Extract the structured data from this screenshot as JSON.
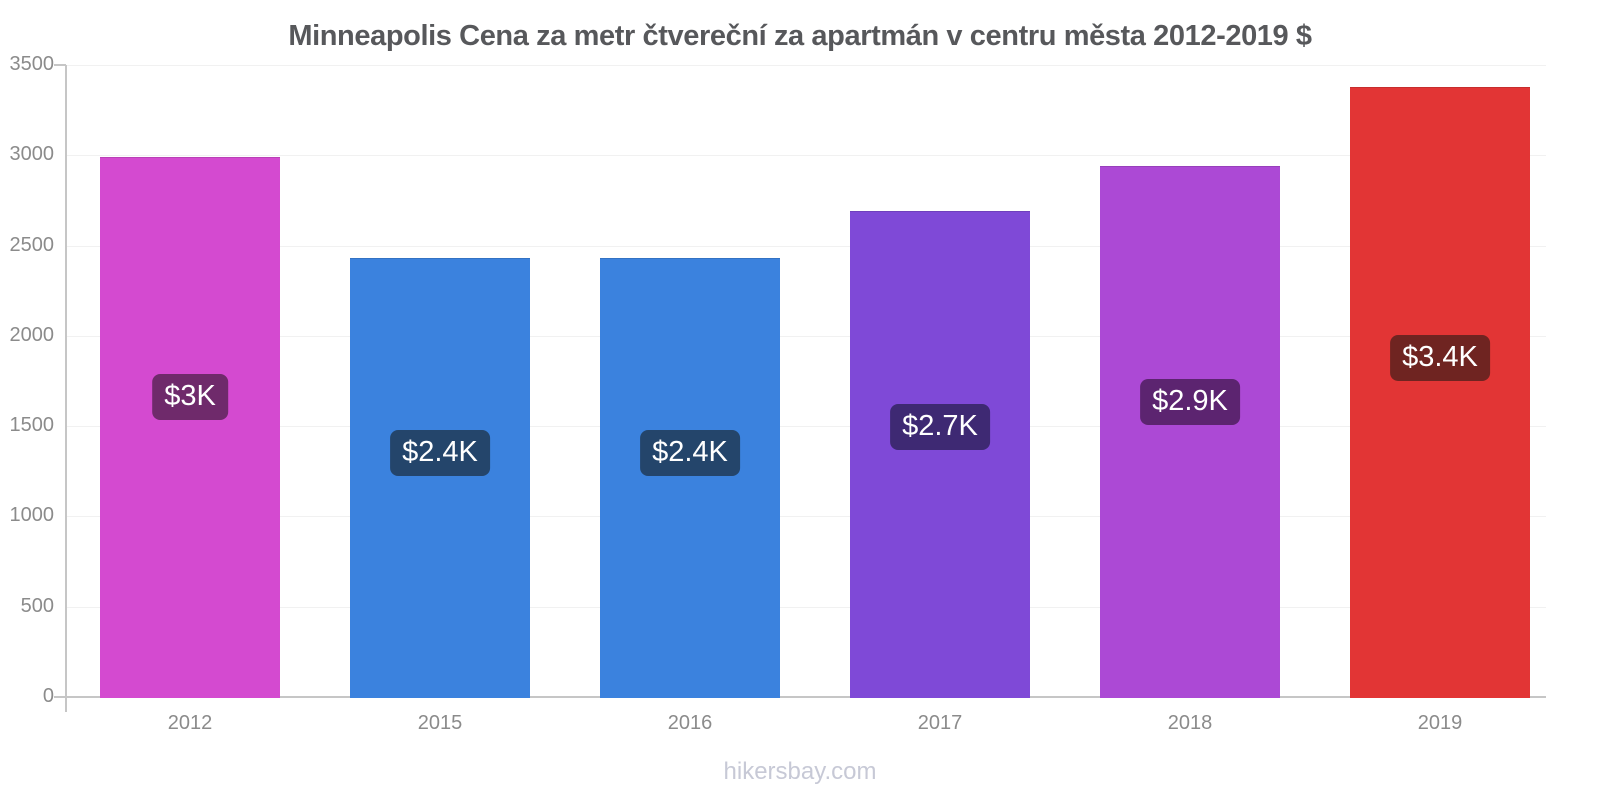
{
  "title": "Minneapolis Cena za metr čtvereční za apartmán v centru města 2012-2019 $",
  "footer": "hikersbay.com",
  "chart_data": {
    "type": "bar",
    "title": "Minneapolis Cena za metr čtvereční za apartmán v centru města 2012-2019 $",
    "categories": [
      "2012",
      "2015",
      "2016",
      "2017",
      "2018",
      "2019"
    ],
    "values": [
      2990,
      2430,
      2430,
      2690,
      2940,
      3380
    ],
    "bar_labels": [
      "$3K",
      "$2.4K",
      "$2.4K",
      "$2.7K",
      "$2.9K",
      "$3.4K"
    ],
    "bar_colors": [
      "#d44ad0",
      "#3b82de",
      "#3b82de",
      "#7f49d7",
      "#ac49d5",
      "#e23535"
    ],
    "bar_label_bg": [
      "#6f2a6b",
      "#24456b",
      "#24456b",
      "#3e2973",
      "#5c2470",
      "#6f2421"
    ],
    "xlabel": "",
    "ylabel": "",
    "ylim": [
      0,
      3500
    ],
    "yticks": [
      0,
      500,
      1000,
      1500,
      2000,
      2500,
      3000,
      3500
    ],
    "grid": true,
    "legend": "none",
    "axis_color": "#c6c6c6",
    "grid_color": "#f1f1f1",
    "tick_label_color": "#8b8b8b",
    "title_color": "#57585b",
    "footer_color": "#c7c9d6"
  }
}
